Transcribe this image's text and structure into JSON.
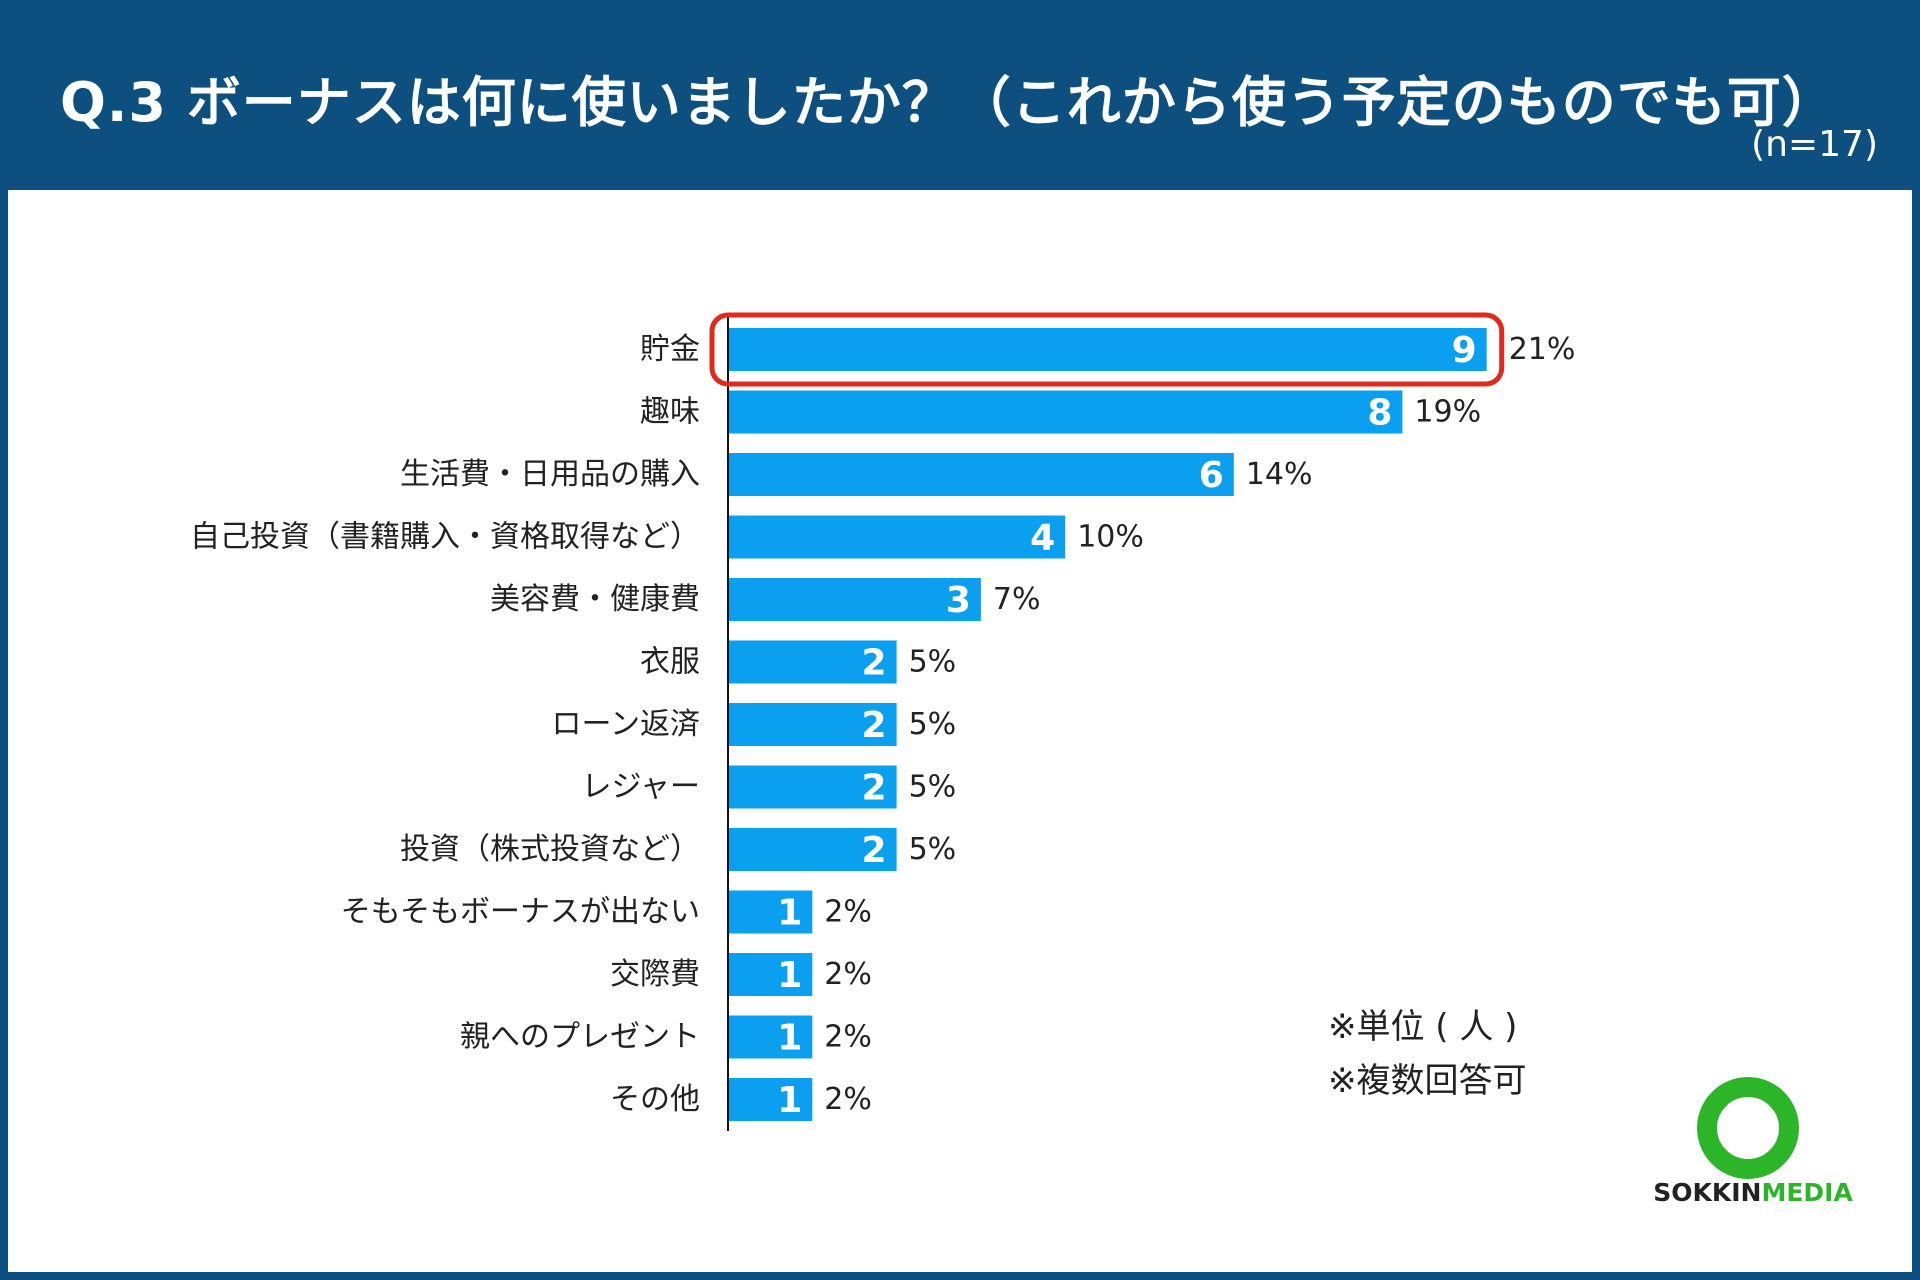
{
  "header": {
    "title": "Q.3 ボーナスは何に使いましたか？（これから使う予定のものでも可）",
    "sample_size": "(n=17)"
  },
  "notes": [
    "※単位 ( 人 )",
    "※複数回答可"
  ],
  "logo": {
    "name": "logo-ring-icon",
    "text_part1": "SOKKIN",
    "text_part2": "MEDIA"
  },
  "colors": {
    "header_bg": "#0d4f7e",
    "bar": "#0aa0ef",
    "highlight": "#e02a1d",
    "logo_green": "#2db52a",
    "logo_dark": "#222222"
  },
  "chart_data": {
    "type": "bar",
    "orientation": "horizontal",
    "categories": [
      "貯金",
      "趣味",
      "生活費・日用品の購入",
      "自己投資（書籍購入・資格取得など）",
      "美容費・健康費",
      "衣服",
      "ローン返済",
      "レジャー",
      "投資（株式投資など）",
      "そもそもボーナスが出ない",
      "交際費",
      "親へのプレゼント",
      "その他"
    ],
    "values": [
      9,
      8,
      6,
      4,
      3,
      2,
      2,
      2,
      2,
      1,
      1,
      1,
      1
    ],
    "percent_labels": [
      "21%",
      "19%",
      "14%",
      "10%",
      "7%",
      "5%",
      "5%",
      "5%",
      "5%",
      "2%",
      "2%",
      "2%",
      "2%"
    ],
    "highlight_index": 0,
    "xlim": [
      0,
      9
    ],
    "unit": "人"
  }
}
